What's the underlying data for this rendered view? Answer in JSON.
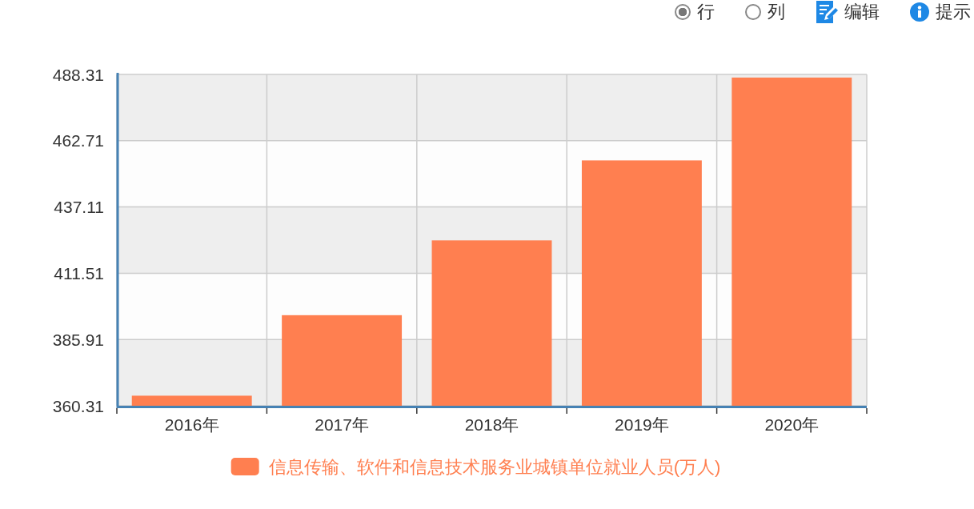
{
  "chart_data": {
    "type": "bar",
    "categories": [
      "2016年",
      "2017年",
      "2018年",
      "2019年",
      "2020年"
    ],
    "series": [
      {
        "name": "信息传输、软件和信息技术服务业城镇单位就业人员(万人)",
        "color": "#ff7f50",
        "values": [
          364.2,
          395.3,
          424.2,
          455.1,
          487.1
        ]
      }
    ],
    "ylim": [
      360.31,
      488.31
    ],
    "yticks": [
      360.31,
      385.91,
      411.51,
      437.11,
      462.71,
      488.31
    ],
    "grid": true,
    "legend": "bottom",
    "annotations": [
      "行",
      "列",
      "编辑",
      "提示"
    ]
  }
}
